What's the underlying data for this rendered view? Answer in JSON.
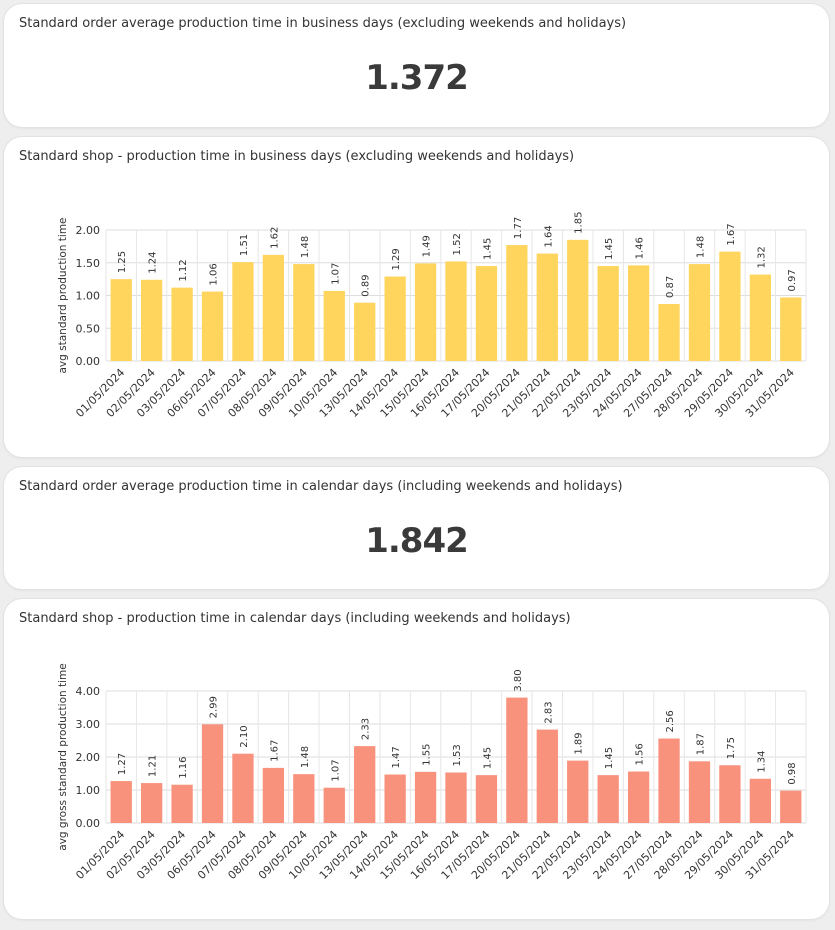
{
  "cards": {
    "kpi_business": {
      "title": "Standard order average production time in business days (excluding weekends and holidays)",
      "value": "1.372"
    },
    "chart_business": {
      "title": "Standard shop - production time in business days (excluding weekends and holidays)"
    },
    "kpi_calendar": {
      "title": "Standard order average production time in calendar days (including weekends and holidays)",
      "value": "1.842"
    },
    "chart_calendar": {
      "title": "Standard shop - production time in calendar days (including weekends and holidays)"
    }
  },
  "chart_data": [
    {
      "type": "bar",
      "title": "Standard shop - production time in business days (excluding weekends and holidays)",
      "xlabel": "",
      "ylabel": "avg standard production time",
      "ylim": [
        0,
        2
      ],
      "yticks": [
        "0.00",
        "0.50",
        "1.00",
        "1.50",
        "2.00"
      ],
      "grid": true,
      "color": "#ffd55e",
      "categories": [
        "01/05/2024",
        "02/05/2024",
        "03/05/2024",
        "06/05/2024",
        "07/05/2024",
        "08/05/2024",
        "09/05/2024",
        "10/05/2024",
        "13/05/2024",
        "14/05/2024",
        "15/05/2024",
        "16/05/2024",
        "17/05/2024",
        "20/05/2024",
        "21/05/2024",
        "22/05/2024",
        "23/05/2024",
        "24/05/2024",
        "27/05/2024",
        "28/05/2024",
        "29/05/2024",
        "30/05/2024",
        "31/05/2024"
      ],
      "values": [
        1.25,
        1.24,
        1.12,
        1.06,
        1.51,
        1.62,
        1.48,
        1.07,
        0.89,
        1.29,
        1.49,
        1.52,
        1.45,
        1.77,
        1.64,
        1.85,
        1.45,
        1.46,
        0.87,
        1.48,
        1.67,
        1.32,
        0.97
      ],
      "data_labels": [
        "1.25",
        "1.24",
        "1.12",
        "1.06",
        "1.51",
        "1.62",
        "1.48",
        "1.07",
        "0.89",
        "1.29",
        "1.49",
        "1.52",
        "1.45",
        "1.77",
        "1.64",
        "1.85",
        "1.45",
        "1.46",
        "0.87",
        "1.48",
        "1.67",
        "1.32",
        "0.97"
      ]
    },
    {
      "type": "bar",
      "title": "Standard shop - production time in calendar days (including weekends and holidays)",
      "xlabel": "",
      "ylabel": "avg gross standard production time",
      "ylim": [
        0,
        4
      ],
      "yticks": [
        "0.00",
        "1.00",
        "2.00",
        "3.00",
        "4.00"
      ],
      "grid": true,
      "color": "#f8927c",
      "categories": [
        "01/05/2024",
        "02/05/2024",
        "03/05/2024",
        "06/05/2024",
        "07/05/2024",
        "08/05/2024",
        "09/05/2024",
        "10/05/2024",
        "13/05/2024",
        "14/05/2024",
        "15/05/2024",
        "16/05/2024",
        "17/05/2024",
        "20/05/2024",
        "21/05/2024",
        "22/05/2024",
        "23/05/2024",
        "24/05/2024",
        "27/05/2024",
        "28/05/2024",
        "29/05/2024",
        "30/05/2024",
        "31/05/2024"
      ],
      "values": [
        1.27,
        1.21,
        1.16,
        2.99,
        2.1,
        1.67,
        1.48,
        1.07,
        2.33,
        1.47,
        1.55,
        1.53,
        1.45,
        3.8,
        2.83,
        1.89,
        1.45,
        1.56,
        2.56,
        1.87,
        1.75,
        1.34,
        0.98
      ],
      "data_labels": [
        "1.27",
        "1.21",
        "1.16",
        "2.99",
        "2.10",
        "1.67",
        "1.48",
        "1.07",
        "2.33",
        "1.47",
        "1.55",
        "1.53",
        "1.45",
        "3.80",
        "2.83",
        "1.89",
        "1.45",
        "1.56",
        "2.56",
        "1.87",
        "1.75",
        "1.34",
        "0.98"
      ]
    }
  ]
}
